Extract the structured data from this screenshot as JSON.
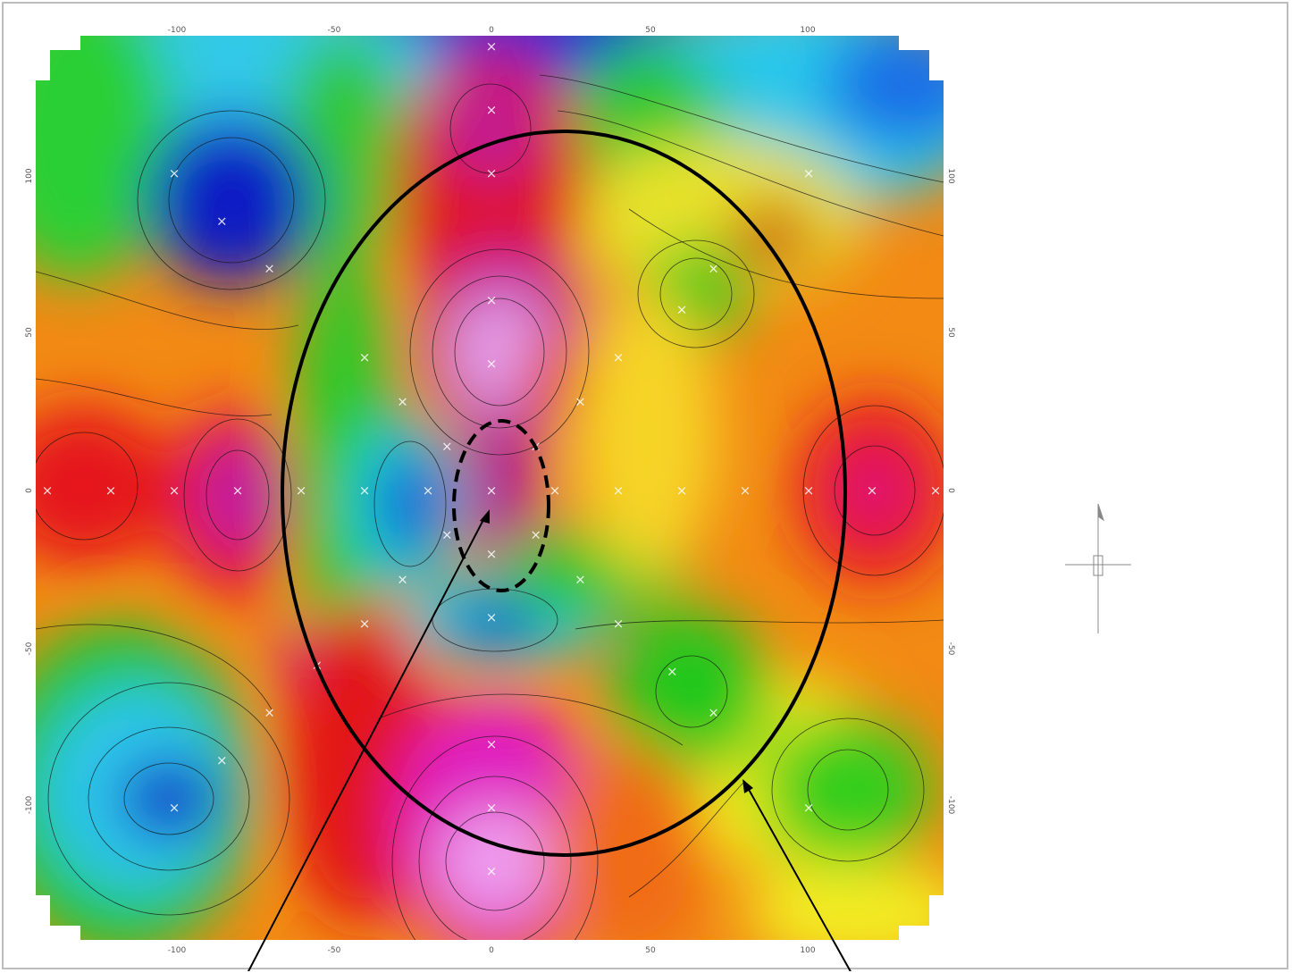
{
  "map": {
    "x_ticks": [
      "-100",
      "-50",
      "0",
      "50",
      "100"
    ],
    "y_ticks_left": [
      "100",
      "50",
      "0",
      "-50",
      "-100"
    ],
    "y_ticks_right": [
      "100",
      "50",
      "0",
      "-50",
      "-100"
    ],
    "data_range": {
      "x": [
        -140,
        140
      ],
      "y": [
        -140,
        140
      ]
    },
    "colormap": [
      "#0018c8",
      "#1fd8f0",
      "#22c81e",
      "#f5f018",
      "#f08a12",
      "#e8141c",
      "#c0169a",
      "#ee9ff0"
    ],
    "annotation_color": "#000000",
    "marker_color": "#ffffff",
    "survey_points": [
      [
        0,
        140
      ],
      [
        0,
        120
      ],
      [
        0,
        100
      ],
      [
        -85,
        85
      ],
      [
        -100,
        100
      ],
      [
        -70,
        70
      ],
      [
        100,
        100
      ],
      [
        70,
        70
      ],
      [
        60,
        57
      ],
      [
        0,
        60
      ],
      [
        0,
        40
      ],
      [
        -40,
        42
      ],
      [
        40,
        42
      ],
      [
        -28,
        28
      ],
      [
        28,
        28
      ],
      [
        -14,
        14
      ],
      [
        14,
        14
      ],
      [
        -140,
        0
      ],
      [
        -120,
        0
      ],
      [
        -100,
        0
      ],
      [
        -80,
        0
      ],
      [
        -60,
        0
      ],
      [
        -40,
        0
      ],
      [
        -20,
        0
      ],
      [
        0,
        0
      ],
      [
        20,
        0
      ],
      [
        40,
        0
      ],
      [
        60,
        0
      ],
      [
        80,
        0
      ],
      [
        100,
        0
      ],
      [
        120,
        0
      ],
      [
        140,
        0
      ],
      [
        -14,
        -14
      ],
      [
        14,
        -14
      ],
      [
        0,
        -20
      ],
      [
        -28,
        -28
      ],
      [
        28,
        -28
      ],
      [
        -40,
        -42
      ],
      [
        40,
        -42
      ],
      [
        0,
        -40
      ],
      [
        -55,
        -55
      ],
      [
        57,
        -57
      ],
      [
        70,
        -70
      ],
      [
        -70,
        -70
      ],
      [
        -85,
        -85
      ],
      [
        -100,
        -100
      ],
      [
        0,
        -80
      ],
      [
        0,
        -100
      ],
      [
        0,
        -120
      ],
      [
        100,
        -100
      ]
    ]
  }
}
